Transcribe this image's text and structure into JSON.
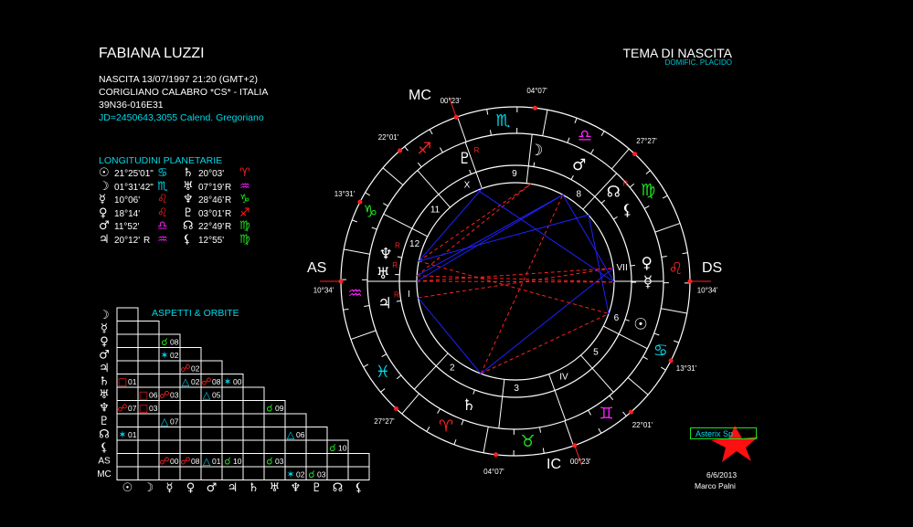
{
  "header": {
    "name": "FABIANA LUZZI",
    "birth": "NASCITA 13/07/1997 21:20 (GMT+2)",
    "place": "CORIGLIANO CALABRO   *CS* - ITALIA",
    "coords": "39N36-016E31",
    "julian": "JD=2450643,3055  Calend. Gregoriano"
  },
  "chart_title": "TEMA DI NASCITA",
  "chart_subtitle": "DOMIFIC. PLACIDO",
  "colors": {
    "fire": "#ff2020",
    "earth": "#20e020",
    "air": "#ff20ff",
    "water": "#00d8e8",
    "hard_aspect": "#ff2020",
    "soft_aspect": "#2020ff"
  },
  "planet_list": {
    "title": "LONGITUDINI PLANETARIE",
    "items": [
      {
        "name": "sun",
        "glyph": "☉",
        "deg": "21°25'01\"",
        "retro": "",
        "sign": "cancer",
        "sign_glyph": "♋"
      },
      {
        "name": "moon",
        "glyph": "☽",
        "deg": "01°31'42\"",
        "retro": "",
        "sign": "scorpio",
        "sign_glyph": "♏"
      },
      {
        "name": "mercury",
        "glyph": "☿",
        "deg": "10°06'",
        "retro": "",
        "sign": "leo",
        "sign_glyph": "♌"
      },
      {
        "name": "venus",
        "glyph": "♀",
        "deg": "18°14'",
        "retro": "",
        "sign": "leo",
        "sign_glyph": "♌"
      },
      {
        "name": "mars",
        "glyph": "♂",
        "deg": "11°52'",
        "retro": "",
        "sign": "libra",
        "sign_glyph": "♎"
      },
      {
        "name": "jupiter",
        "glyph": "♃",
        "deg": "20°12'",
        "retro": "R",
        "sign": "aquarius",
        "sign_glyph": "♒"
      },
      {
        "name": "saturn",
        "glyph": "♄",
        "deg": "20°03'",
        "retro": "",
        "sign": "aries",
        "sign_glyph": "♈"
      },
      {
        "name": "uranus",
        "glyph": "♅",
        "deg": "07°19'",
        "retro": "R",
        "sign": "aquarius",
        "sign_glyph": "♒"
      },
      {
        "name": "neptune",
        "glyph": "♆",
        "deg": "28°46'",
        "retro": "R",
        "sign": "capricorn",
        "sign_glyph": "♑"
      },
      {
        "name": "pluto",
        "glyph": "♇",
        "deg": "03°01'",
        "retro": "R",
        "sign": "sagittarius",
        "sign_glyph": "♐"
      },
      {
        "name": "node",
        "glyph": "☊",
        "deg": "22°49'",
        "retro": "R",
        "sign": "virgo",
        "sign_glyph": "♍"
      },
      {
        "name": "lilith",
        "glyph": "⚸",
        "deg": "12°55'",
        "retro": "",
        "sign": "virgo",
        "sign_glyph": "♍"
      }
    ]
  },
  "aspects": {
    "title": "ASPETTI  &  ORBITE",
    "row_labels": [
      "☽",
      "☿",
      "♀",
      "♂",
      "♃",
      "♄",
      "♅",
      "♆",
      "♇",
      "☊",
      "⚸",
      "AS",
      "MC"
    ],
    "col_labels": [
      "☉",
      "☽",
      "☿",
      "♀",
      "♂",
      "♃",
      "♄",
      "♅",
      "♆",
      "♇",
      "☊",
      "⚸"
    ],
    "types": {
      "conjunction": {
        "glyph": "☌",
        "kind": "minor"
      },
      "opposition": {
        "glyph": "☍",
        "kind": "hard"
      },
      "square": {
        "glyph": "□",
        "kind": "hard"
      },
      "trine": {
        "glyph": "△",
        "kind": "soft"
      },
      "sextile": {
        "glyph": "✶",
        "kind": "soft"
      }
    },
    "type_colors": {
      "conjunction": "#20e020",
      "opposition": "#ff2020",
      "square": "#ff2020",
      "trine": "#00d8e8",
      "sextile": "#00d8e8"
    },
    "cells": [
      {
        "row": "venus",
        "col": "mercury",
        "type": "conjunction",
        "orb": "08"
      },
      {
        "row": "mars",
        "col": "mercury",
        "type": "sextile",
        "orb": "02"
      },
      {
        "row": "jupiter",
        "col": "venus",
        "type": "opposition",
        "orb": "02"
      },
      {
        "row": "saturn",
        "col": "sun",
        "type": "square",
        "orb": "01"
      },
      {
        "row": "saturn",
        "col": "venus",
        "type": "trine",
        "orb": "02"
      },
      {
        "row": "saturn",
        "col": "mars",
        "type": "opposition",
        "orb": "08"
      },
      {
        "row": "saturn",
        "col": "jupiter",
        "type": "sextile",
        "orb": "00"
      },
      {
        "row": "uranus",
        "col": "moon",
        "type": "square",
        "orb": "06"
      },
      {
        "row": "uranus",
        "col": "mercury",
        "type": "opposition",
        "orb": "03"
      },
      {
        "row": "uranus",
        "col": "mars",
        "type": "trine",
        "orb": "05"
      },
      {
        "row": "neptune",
        "col": "sun",
        "type": "opposition",
        "orb": "07"
      },
      {
        "row": "neptune",
        "col": "moon",
        "type": "square",
        "orb": "03"
      },
      {
        "row": "neptune",
        "col": "uranus",
        "type": "conjunction",
        "orb": "09"
      },
      {
        "row": "pluto",
        "col": "mercury",
        "type": "trine",
        "orb": "07"
      },
      {
        "row": "node",
        "col": "sun",
        "type": "sextile",
        "orb": "01"
      },
      {
        "row": "node",
        "col": "neptune",
        "type": "trine",
        "orb": "06"
      },
      {
        "row": "lilith",
        "col": "node",
        "type": "conjunction",
        "orb": "10"
      },
      {
        "row": "as",
        "col": "mercury",
        "type": "opposition",
        "orb": "00"
      },
      {
        "row": "as",
        "col": "venus",
        "type": "opposition",
        "orb": "08"
      },
      {
        "row": "as",
        "col": "mars",
        "type": "trine",
        "orb": "01"
      },
      {
        "row": "as",
        "col": "jupiter",
        "type": "conjunction",
        "orb": "10"
      },
      {
        "row": "as",
        "col": "uranus",
        "type": "conjunction",
        "orb": "03"
      },
      {
        "row": "mc",
        "col": "neptune",
        "type": "sextile",
        "orb": "02"
      },
      {
        "row": "mc",
        "col": "pluto",
        "type": "conjunction",
        "orb": "03"
      }
    ]
  },
  "wheel": {
    "angles": {
      "as": "AS",
      "ds": "DS",
      "mc": "MC",
      "ic": "IC"
    },
    "signs": [
      {
        "name": "aries",
        "glyph": "♈",
        "element": "fire"
      },
      {
        "name": "taurus",
        "glyph": "♉",
        "element": "earth"
      },
      {
        "name": "gemini",
        "glyph": "♊",
        "element": "air"
      },
      {
        "name": "cancer",
        "glyph": "♋",
        "element": "water"
      },
      {
        "name": "leo",
        "glyph": "♌",
        "element": "fire"
      },
      {
        "name": "virgo",
        "glyph": "♍",
        "element": "earth"
      },
      {
        "name": "libra",
        "glyph": "♎",
        "element": "air"
      },
      {
        "name": "scorpio",
        "glyph": "♏",
        "element": "water"
      },
      {
        "name": "sagittarius",
        "glyph": "♐",
        "element": "fire"
      },
      {
        "name": "capricorn",
        "glyph": "♑",
        "element": "earth"
      },
      {
        "name": "aquarius",
        "glyph": "♒",
        "element": "air"
      },
      {
        "name": "pisces",
        "glyph": "♓",
        "element": "water"
      }
    ],
    "houses": [
      {
        "label": "I",
        "lon": 310.57,
        "deg": "10°34'"
      },
      {
        "label": "2",
        "lon": 357.45,
        "deg": "27°27'"
      },
      {
        "label": "3",
        "lon": 34.12,
        "deg": "04°07'"
      },
      {
        "label": "IV",
        "lon": 60.38,
        "deg": "00°23'"
      },
      {
        "label": "5",
        "lon": 82.02,
        "deg": "22°01'"
      },
      {
        "label": "6",
        "lon": 103.52,
        "deg": "13°31'"
      },
      {
        "label": "VII",
        "lon": 130.57,
        "deg": "10°34'"
      },
      {
        "label": "8",
        "lon": 177.45,
        "deg": "27°27'"
      },
      {
        "label": "9",
        "lon": 214.12,
        "deg": "04°07'"
      },
      {
        "label": "X",
        "lon": 240.38,
        "deg": "00°23'"
      },
      {
        "label": "11",
        "lon": 262.02,
        "deg": "22°01'"
      },
      {
        "label": "12",
        "lon": 283.52,
        "deg": "13°31'"
      }
    ],
    "planets": [
      {
        "name": "sun",
        "glyph": "☉",
        "lon": 111.42,
        "retro": ""
      },
      {
        "name": "moon",
        "glyph": "☽",
        "lon": 211.53,
        "retro": ""
      },
      {
        "name": "mercury",
        "glyph": "☿",
        "lon": 130.1,
        "retro": ""
      },
      {
        "name": "venus",
        "glyph": "♀",
        "lon": 138.23,
        "retro": ""
      },
      {
        "name": "mars",
        "glyph": "♂",
        "lon": 191.87,
        "retro": ""
      },
      {
        "name": "jupiter",
        "glyph": "♃",
        "lon": 320.2,
        "retro": "R"
      },
      {
        "name": "saturn",
        "glyph": "♄",
        "lon": 20.05,
        "retro": ""
      },
      {
        "name": "uranus",
        "glyph": "♅",
        "lon": 307.32,
        "retro": "R"
      },
      {
        "name": "neptune",
        "glyph": "♆",
        "lon": 298.77,
        "retro": "R"
      },
      {
        "name": "pluto",
        "glyph": "♇",
        "lon": 243.02,
        "retro": "R"
      },
      {
        "name": "node",
        "glyph": "☊",
        "lon": 172.82,
        "retro": "R"
      },
      {
        "name": "lilith",
        "glyph": "⚸",
        "lon": 162.92,
        "retro": ""
      }
    ]
  },
  "footer": {
    "asterix": "Asterix Sp",
    "date": "6/6/2013",
    "author": "Marco Palni"
  }
}
